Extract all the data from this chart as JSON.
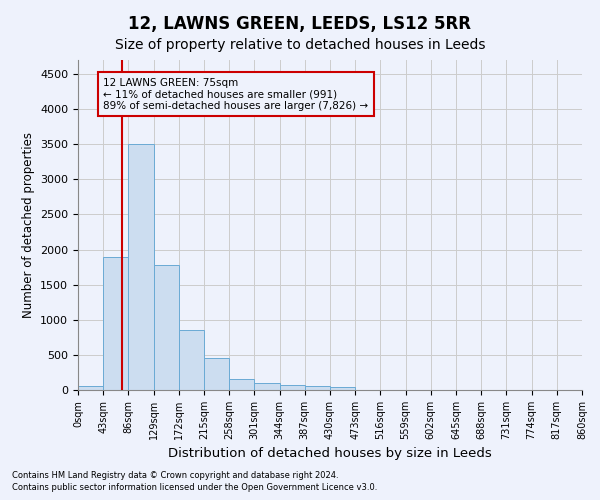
{
  "title": "12, LAWNS GREEN, LEEDS, LS12 5RR",
  "subtitle": "Size of property relative to detached houses in Leeds",
  "xlabel": "Distribution of detached houses by size in Leeds",
  "ylabel": "Number of detached properties",
  "bar_values": [
    50,
    1900,
    3500,
    1780,
    850,
    450,
    160,
    100,
    70,
    55,
    40,
    0,
    0,
    0,
    0,
    0,
    0,
    0,
    0,
    0
  ],
  "bin_edges": [
    0,
    43,
    86,
    129,
    172,
    215,
    258,
    301,
    344,
    387,
    430,
    473,
    516,
    559,
    602,
    645,
    688,
    731,
    774,
    817,
    860
  ],
  "tick_labels": [
    "0sqm",
    "43sqm",
    "86sqm",
    "129sqm",
    "172sqm",
    "215sqm",
    "258sqm",
    "301sqm",
    "344sqm",
    "387sqm",
    "430sqm",
    "473sqm",
    "516sqm",
    "559sqm",
    "602sqm",
    "645sqm",
    "688sqm",
    "731sqm",
    "774sqm",
    "817sqm",
    "860sqm"
  ],
  "bar_color": "#ccddf0",
  "bar_edge_color": "#6aaad4",
  "grid_color": "#cccccc",
  "ylim": [
    0,
    4700
  ],
  "yticks": [
    0,
    500,
    1000,
    1500,
    2000,
    2500,
    3000,
    3500,
    4000,
    4500
  ],
  "vline_x": 75,
  "vline_color": "#cc0000",
  "annotation_text": "12 LAWNS GREEN: 75sqm\n← 11% of detached houses are smaller (991)\n89% of semi-detached houses are larger (7,826) →",
  "annotation_box_color": "#cc0000",
  "footnote1": "Contains HM Land Registry data © Crown copyright and database right 2024.",
  "footnote2": "Contains public sector information licensed under the Open Government Licence v3.0.",
  "background_color": "#eef2fc",
  "title_fontsize": 12,
  "subtitle_fontsize": 10
}
